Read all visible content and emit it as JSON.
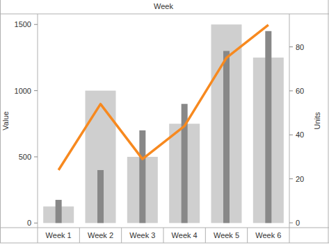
{
  "chart_data": {
    "type": "bar",
    "xlabel": "Week",
    "ylabel": "Value",
    "y2label": "Units",
    "categories": [
      "Week 1",
      "Week 2",
      "Week 3",
      "Week 4",
      "Week 5",
      "Week 6"
    ],
    "series": [
      {
        "type": "bar",
        "color": "#cfcfcf",
        "values": [
          125,
          1000,
          500,
          750,
          1500,
          1250
        ]
      },
      {
        "type": "bar",
        "color": "#888888",
        "values": [
          175,
          400,
          700,
          900,
          1300,
          1450
        ]
      },
      {
        "type": "line",
        "axis": "y2",
        "color": "#f7891f",
        "values": [
          24,
          54,
          29,
          44,
          75,
          90
        ]
      }
    ],
    "ylim": [
      -35,
      1580
    ],
    "yticks": [
      0,
      500,
      1000,
      1500
    ],
    "y2lim": [
      -2.2,
      95
    ],
    "y2ticks": [
      0,
      20,
      40,
      60,
      80
    ],
    "grid": false
  }
}
